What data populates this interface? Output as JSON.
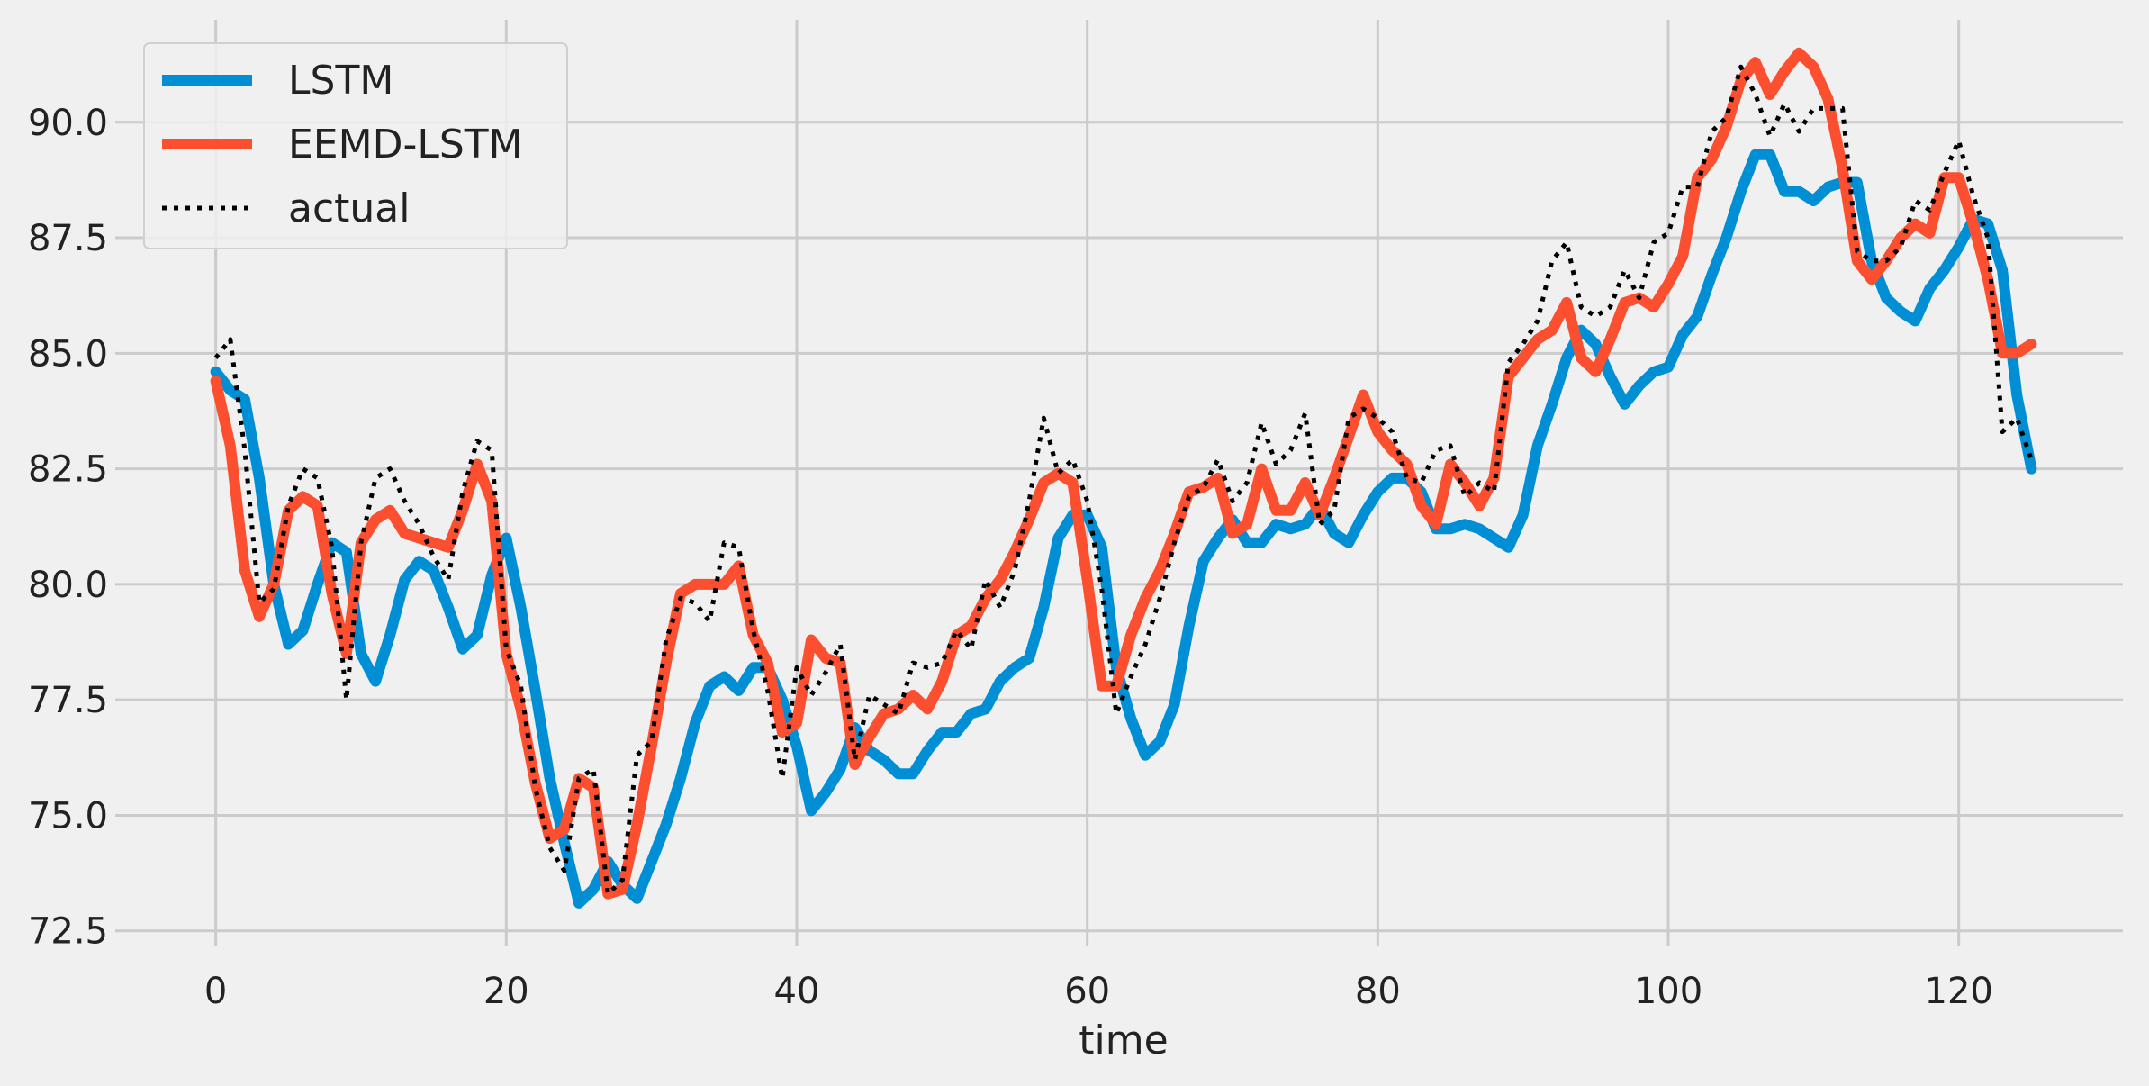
{
  "chart_data": {
    "type": "line",
    "xlabel": "time",
    "ylabel": "",
    "xlim": [
      -6.3,
      131.3
    ],
    "ylim": [
      72.3,
      92.1
    ],
    "xticks": [
      0,
      20,
      40,
      60,
      80,
      100,
      120
    ],
    "xtick_labels": [
      "0",
      "20",
      "40",
      "60",
      "80",
      "100",
      "120"
    ],
    "yticks": [
      72.5,
      75.0,
      77.5,
      80.0,
      82.5,
      85.0,
      87.5,
      90.0
    ],
    "ytick_labels": [
      "72.5",
      "75.0",
      "77.5",
      "80.0",
      "82.5",
      "85.0",
      "87.5",
      "90.0"
    ],
    "grid": true,
    "legend": {
      "placement": "top-left"
    },
    "series": [
      {
        "name": "LSTM",
        "color": "#008fd5",
        "style": "solid",
        "values": [
          84.6,
          84.2,
          84.0,
          82.3,
          80.0,
          78.7,
          79.0,
          80.0,
          80.9,
          80.7,
          78.5,
          77.9,
          78.9,
          80.1,
          80.5,
          80.3,
          79.5,
          78.6,
          78.9,
          80.2,
          81.0,
          79.5,
          77.7,
          75.8,
          74.4,
          73.1,
          73.4,
          74.0,
          73.5,
          73.2,
          74.0,
          74.8,
          75.8,
          77.0,
          77.8,
          78.0,
          77.7,
          78.2,
          78.2,
          77.5,
          76.5,
          75.1,
          75.5,
          76.0,
          76.9,
          76.4,
          76.2,
          75.9,
          75.9,
          76.4,
          76.8,
          76.8,
          77.2,
          77.3,
          77.9,
          78.2,
          78.4,
          79.5,
          81.0,
          81.5,
          81.5,
          80.8,
          78.2,
          77.1,
          76.3,
          76.6,
          77.4,
          79.1,
          80.5,
          81.0,
          81.4,
          80.9,
          80.9,
          81.3,
          81.2,
          81.3,
          81.7,
          81.1,
          80.9,
          81.5,
          82.0,
          82.3,
          82.3,
          82.0,
          81.2,
          81.2,
          81.3,
          81.2,
          81.0,
          80.8,
          81.5,
          83.0,
          83.9,
          84.9,
          85.5,
          85.2,
          84.5,
          83.9,
          84.3,
          84.6,
          84.7,
          85.4,
          85.8,
          86.7,
          87.5,
          88.5,
          89.3,
          89.3,
          88.5,
          88.5,
          88.3,
          88.6,
          88.7,
          88.7,
          87.0,
          86.2,
          85.9,
          85.7,
          86.4,
          86.8,
          87.3,
          87.9,
          87.8,
          86.8,
          84.1,
          82.5
        ]
      },
      {
        "name": "EEMD-LSTM",
        "color": "#fc4f30",
        "style": "solid",
        "values": [
          84.4,
          83.0,
          80.3,
          79.3,
          80.0,
          81.6,
          81.9,
          81.7,
          79.8,
          78.5,
          80.9,
          81.4,
          81.6,
          81.1,
          81.0,
          80.9,
          80.8,
          81.6,
          82.6,
          81.8,
          78.5,
          77.3,
          75.7,
          74.5,
          74.7,
          75.8,
          75.6,
          73.3,
          73.4,
          74.8,
          76.5,
          78.3,
          79.8,
          80.0,
          80.0,
          80.0,
          80.4,
          78.9,
          78.3,
          76.8,
          77.0,
          78.8,
          78.4,
          78.3,
          76.1,
          76.7,
          77.2,
          77.3,
          77.6,
          77.3,
          77.9,
          78.9,
          79.1,
          79.7,
          80.1,
          80.7,
          81.4,
          82.2,
          82.4,
          82.2,
          80.1,
          77.8,
          77.8,
          78.9,
          79.7,
          80.3,
          81.1,
          82.0,
          82.1,
          82.3,
          81.1,
          81.3,
          82.5,
          81.6,
          81.6,
          82.2,
          81.5,
          82.3,
          83.2,
          84.1,
          83.3,
          82.9,
          82.6,
          81.7,
          81.3,
          82.6,
          82.2,
          81.7,
          82.3,
          84.5,
          84.9,
          85.3,
          85.5,
          86.1,
          84.9,
          84.6,
          85.3,
          86.1,
          86.2,
          86.0,
          86.5,
          87.1,
          88.8,
          89.2,
          89.9,
          90.9,
          91.3,
          90.6,
          91.1,
          91.5,
          91.2,
          90.5,
          89.0,
          87.0,
          86.6,
          87.0,
          87.5,
          87.8,
          87.6,
          88.8,
          88.8,
          87.8,
          86.6,
          85.0,
          85.0,
          85.2
        ]
      },
      {
        "name": "actual",
        "color": "#000000",
        "style": "dotted",
        "values": [
          84.9,
          85.3,
          82.9,
          79.6,
          79.9,
          81.7,
          82.5,
          82.3,
          80.8,
          77.5,
          80.9,
          82.3,
          82.5,
          81.8,
          81.3,
          80.6,
          80.1,
          82.0,
          83.1,
          82.9,
          78.6,
          77.8,
          75.6,
          74.3,
          73.8,
          75.8,
          76.0,
          73.3,
          73.6,
          76.3,
          76.6,
          78.8,
          79.7,
          79.6,
          79.2,
          80.9,
          80.8,
          79.0,
          77.7,
          75.8,
          78.2,
          77.6,
          78.1,
          78.7,
          76.2,
          77.6,
          77.4,
          77.2,
          78.3,
          78.2,
          78.3,
          79.0,
          78.6,
          80.1,
          79.5,
          80.3,
          81.8,
          83.6,
          82.4,
          82.7,
          81.8,
          79.9,
          77.2,
          78.0,
          78.7,
          79.7,
          80.9,
          81.9,
          82.1,
          82.7,
          81.8,
          82.2,
          83.5,
          82.6,
          82.9,
          83.7,
          81.3,
          81.6,
          83.6,
          83.8,
          83.6,
          83.3,
          82.3,
          82.2,
          82.9,
          83.0,
          81.9,
          82.2,
          82.0,
          84.8,
          85.2,
          85.7,
          87.0,
          87.4,
          86.0,
          85.8,
          86.0,
          86.8,
          86.2,
          87.4,
          87.6,
          88.6,
          88.6,
          89.8,
          90.1,
          91.2,
          90.6,
          89.7,
          90.4,
          89.8,
          90.3,
          90.3,
          90.3,
          87.2,
          87.0,
          87.0,
          87.3,
          88.3,
          88.1,
          88.9,
          89.6,
          88.4,
          87.5,
          83.3,
          83.6,
          82.7
        ]
      }
    ]
  }
}
